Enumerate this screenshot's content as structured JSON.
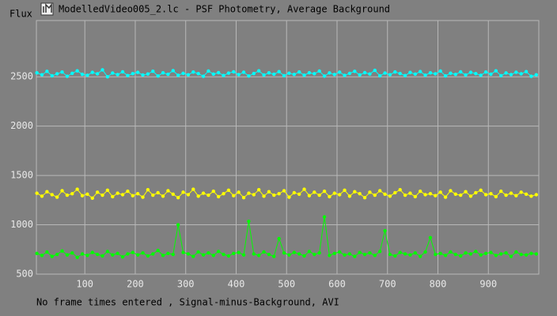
{
  "chart_data": {
    "type": "line",
    "title": "ModelledVideo005_2.lc - PSF Photometry, Average Background",
    "ylabel": "Flux",
    "caption": "No frame times entered , Signal-minus-Background, AVI",
    "x": [
      5,
      15,
      25,
      35,
      45,
      55,
      65,
      75,
      85,
      95,
      105,
      115,
      125,
      135,
      145,
      155,
      165,
      175,
      185,
      195,
      205,
      215,
      225,
      235,
      245,
      255,
      265,
      275,
      285,
      295,
      305,
      315,
      325,
      335,
      345,
      355,
      365,
      375,
      385,
      395,
      405,
      415,
      425,
      435,
      445,
      455,
      465,
      475,
      485,
      495,
      505,
      515,
      525,
      535,
      545,
      555,
      565,
      575,
      585,
      595,
      605,
      615,
      625,
      635,
      645,
      655,
      665,
      675,
      685,
      695,
      705,
      715,
      725,
      735,
      745,
      755,
      765,
      775,
      785,
      795,
      805,
      815,
      825,
      835,
      845,
      855,
      865,
      875,
      885,
      895,
      905,
      915,
      925,
      935,
      945,
      955,
      965,
      975,
      985,
      995
    ],
    "series": [
      {
        "color": "#00ffff",
        "values": [
          2540,
          2520,
          2555,
          2510,
          2530,
          2548,
          2505,
          2535,
          2560,
          2525,
          2515,
          2545,
          2530,
          2570,
          2500,
          2538,
          2522,
          2550,
          2512,
          2532,
          2545,
          2518,
          2528,
          2556,
          2508,
          2540,
          2525,
          2562,
          2515,
          2535,
          2520,
          2548,
          2532,
          2505,
          2558,
          2527,
          2542,
          2513,
          2537,
          2550,
          2522,
          2546,
          2508,
          2533,
          2560,
          2518,
          2540,
          2526,
          2552,
          2511,
          2536,
          2524,
          2549,
          2516,
          2541,
          2531,
          2558,
          2507,
          2539,
          2523,
          2547,
          2514,
          2534,
          2555,
          2519,
          2542,
          2528,
          2565,
          2510,
          2538,
          2521,
          2549,
          2533,
          2512,
          2544,
          2527,
          2553,
          2516,
          2540,
          2530,
          2558,
          2509,
          2536,
          2524,
          2550,
          2518,
          2545,
          2532,
          2515,
          2548,
          2526,
          2560,
          2511,
          2539,
          2522,
          2546,
          2530,
          2552,
          2505,
          2520
        ]
      },
      {
        "color": "#ffff00",
        "values": [
          1320,
          1290,
          1335,
          1305,
          1280,
          1345,
          1300,
          1315,
          1360,
          1295,
          1310,
          1270,
          1330,
          1300,
          1350,
          1285,
          1320,
          1305,
          1340,
          1295,
          1315,
          1280,
          1355,
          1300,
          1325,
          1290,
          1345,
          1310,
          1275,
          1330,
          1305,
          1360,
          1290,
          1320,
          1300,
          1340,
          1285,
          1315,
          1350,
          1295,
          1330,
          1275,
          1320,
          1305,
          1355,
          1290,
          1335,
          1300,
          1315,
          1345,
          1280,
          1325,
          1310,
          1360,
          1295,
          1330,
          1300,
          1340,
          1285,
          1320,
          1305,
          1350,
          1290,
          1335,
          1315,
          1275,
          1330,
          1300,
          1345,
          1310,
          1290,
          1325,
          1355,
          1300,
          1320,
          1285,
          1340,
          1305,
          1315,
          1295,
          1330,
          1280,
          1345,
          1310,
          1300,
          1335,
          1290,
          1325,
          1350,
          1305,
          1315,
          1285,
          1340,
          1300,
          1320,
          1295,
          1330,
          1310,
          1290,
          1305
        ]
      },
      {
        "color": "#00ff00",
        "values": [
          710,
          690,
          725,
          680,
          700,
          735,
          695,
          715,
          670,
          705,
          690,
          720,
          700,
          685,
          730,
          695,
          710,
          675,
          705,
          720,
          695,
          715,
          685,
          705,
          740,
          690,
          710,
          700,
          1000,
          720,
          705,
          680,
          725,
          695,
          715,
          690,
          730,
          700,
          685,
          710,
          720,
          695,
          1035,
          705,
          690,
          725,
          700,
          680,
          860,
          715,
          695,
          720,
          705,
          685,
          730,
          700,
          715,
          1080,
          690,
          710,
          725,
          695,
          705,
          680,
          720,
          700,
          715,
          690,
          730,
          940,
          700,
          685,
          720,
          705,
          695,
          715,
          680,
          725,
          870,
          700,
          710,
          690,
          725,
          700,
          685,
          715,
          705,
          730,
          695,
          710,
          720,
          690,
          705,
          715,
          680,
          725,
          700,
          695,
          710,
          705
        ]
      }
    ],
    "xlim": [
      4,
      1000
    ],
    "ylim": [
      500,
      3070
    ],
    "xticks": [
      100,
      200,
      300,
      400,
      500,
      600,
      700,
      800,
      900
    ],
    "yticks": [
      500,
      1000,
      1500,
      2000,
      2500
    ],
    "grid": true
  }
}
